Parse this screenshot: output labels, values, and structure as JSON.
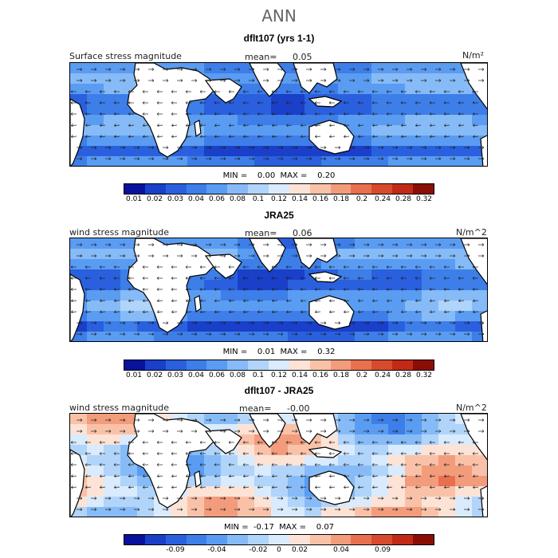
{
  "title": "ANN",
  "palette_pos": [
    "#08129c",
    "#1a3fc9",
    "#2a60de",
    "#3d7ee8",
    "#5a9cf2",
    "#86bbf7",
    "#b0d4fa",
    "#d9ebfc",
    "#fde3d6",
    "#f9c2a8",
    "#f29c7c",
    "#e8704f",
    "#d84a2d",
    "#c02a16",
    "#8a0e06"
  ],
  "palette_diff": [
    "#08129c",
    "#1a3fc9",
    "#2a60de",
    "#3d7ee8",
    "#5a9cf2",
    "#86bbf7",
    "#b0d4fa",
    "#d9ebfc",
    "#fde3d6",
    "#f9c2a8",
    "#f29c7c",
    "#e8704f",
    "#d84a2d",
    "#c02a16",
    "#8a0e06"
  ],
  "panels": [
    {
      "title": "dflt107 (yrs 1-1)",
      "field_label": "Surface stress magnitude",
      "mean_label": "mean=",
      "mean_value": "0.05",
      "units": "N/m²",
      "min_label": "MIN =",
      "min_value": "0.00",
      "max_label": "MAX =",
      "max_value": "0.20",
      "colorbar_ticks": [
        "0.01",
        "0.02",
        "0.03",
        "0.04",
        "0.06",
        "0.08",
        "0.1",
        "0.12",
        "0.14",
        "0.16",
        "0.18",
        "0.2",
        "0.24",
        "0.28",
        "0.32"
      ]
    },
    {
      "title": "JRA25",
      "field_label": "wind stress magnitude",
      "mean_label": "mean=",
      "mean_value": "0.06",
      "units": "N/m^2",
      "min_label": "MIN =",
      "min_value": "0.01",
      "max_label": "MAX =",
      "max_value": "0.32",
      "colorbar_ticks": [
        "0.01",
        "0.02",
        "0.03",
        "0.04",
        "0.06",
        "0.08",
        "0.1",
        "0.12",
        "0.14",
        "0.16",
        "0.18",
        "0.2",
        "0.24",
        "0.28",
        "0.32"
      ]
    },
    {
      "title": "dflt107 - JRA25",
      "field_label": "wind stress magnitude",
      "mean_label": "mean=",
      "mean_value": "-0.00",
      "units": "N/m^2",
      "min_label": "MIN =",
      "min_value": "-0.17",
      "max_label": "MAX =",
      "max_value": "0.07",
      "colorbar_ticks": [
        "-0.09",
        "-0.04",
        "-0.02",
        "0",
        "0.02",
        "0.04",
        "0.09"
      ]
    }
  ],
  "chart_data": [
    {
      "type": "heatmap",
      "title": "dflt107 (yrs 1-1)",
      "variable": "Surface stress magnitude",
      "units": "N/m²",
      "mean": 0.05,
      "min": 0.0,
      "max": 0.2,
      "levels": [
        0.01,
        0.02,
        0.03,
        0.04,
        0.06,
        0.08,
        0.1,
        0.12,
        0.14,
        0.16,
        0.18,
        0.2,
        0.24,
        0.28,
        0.32
      ]
    },
    {
      "type": "heatmap",
      "title": "JRA25",
      "variable": "wind stress magnitude",
      "units": "N/m^2",
      "mean": 0.06,
      "min": 0.01,
      "max": 0.32,
      "levels": [
        0.01,
        0.02,
        0.03,
        0.04,
        0.06,
        0.08,
        0.1,
        0.12,
        0.14,
        0.16,
        0.18,
        0.2,
        0.24,
        0.28,
        0.32
      ]
    },
    {
      "type": "heatmap",
      "title": "dflt107 - JRA25",
      "variable": "wind stress magnitude",
      "units": "N/m^2",
      "mean": -0.0,
      "min": -0.17,
      "max": 0.07,
      "levels": [
        -0.09,
        -0.04,
        -0.02,
        0,
        0.02,
        0.04,
        0.09
      ]
    }
  ]
}
